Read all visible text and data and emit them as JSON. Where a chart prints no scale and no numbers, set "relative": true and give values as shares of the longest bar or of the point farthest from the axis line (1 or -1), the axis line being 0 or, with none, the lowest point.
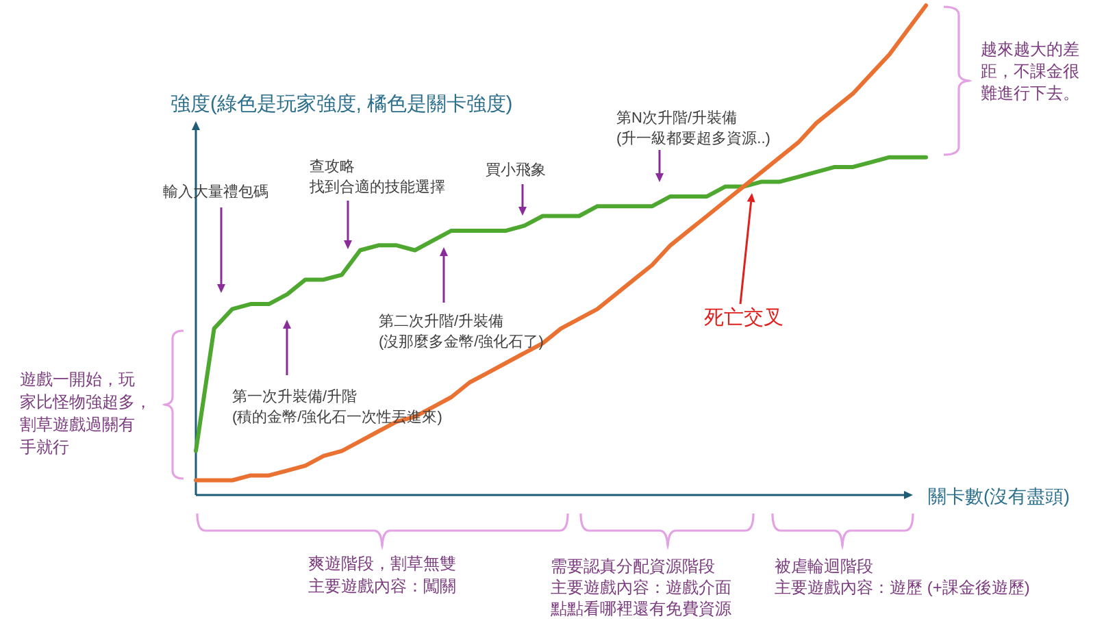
{
  "chart_data": {
    "type": "line",
    "relative": true,
    "ylabel": "強度(綠色是玩家強度, 橘色是關卡強度)",
    "xlabel": "關卡數(沒有盡頭)",
    "categories": [
      null,
      null,
      null,
      null,
      null,
      null,
      null,
      null,
      null,
      null,
      null,
      null,
      null,
      null,
      null,
      null,
      null,
      null,
      null,
      null,
      null,
      null,
      null,
      null,
      null,
      null,
      null,
      null,
      null,
      null,
      null,
      null,
      null,
      null,
      null,
      null,
      null,
      null,
      null,
      null,
      null
    ],
    "series": [
      {
        "color": "#4ea72e",
        "values": [
          0.09,
          0.34,
          0.38,
          0.39,
          0.39,
          0.41,
          0.44,
          0.44,
          0.45,
          0.5,
          0.51,
          0.51,
          0.5,
          0.52,
          0.54,
          0.54,
          0.54,
          0.54,
          0.55,
          0.57,
          0.57,
          0.57,
          0.59,
          0.59,
          0.59,
          0.59,
          0.61,
          0.61,
          0.61,
          0.63,
          0.63,
          0.64,
          0.64,
          0.65,
          0.66,
          0.67,
          0.67,
          0.68,
          0.69,
          0.69,
          0.69
        ]
      },
      {
        "color": "#e97132",
        "values": [
          0.03,
          0.03,
          0.03,
          0.04,
          0.04,
          0.05,
          0.06,
          0.08,
          0.09,
          0.11,
          0.13,
          0.15,
          0.16,
          0.18,
          0.2,
          0.23,
          0.25,
          0.27,
          0.29,
          0.31,
          0.34,
          0.36,
          0.38,
          0.41,
          0.44,
          0.47,
          0.51,
          0.54,
          0.57,
          0.6,
          0.63,
          0.66,
          0.69,
          0.72,
          0.76,
          0.79,
          0.82,
          0.86,
          0.9,
          0.95,
          1
        ]
      }
    ],
    "annotations": [
      "輸入大量禮包碼",
      "查攻略找到合適的技能選擇",
      "買小飛象",
      "第N次升階/升裝備\n(升一級都要超多資源..)",
      "第一次升裝備/升階\n(積的金幣/強化石一次性丟進來)",
      "第二次升階/升裝備\n(沒那麼多金幣/強化石了)",
      "死亡交叉",
      "遊戲一開始，玩家比怪物強超多，割草遊戲過關有手就行",
      "越來越大的差距，不課金很難進行下去。",
      "爽遊階段，割草無雙主要遊戲內容：闖關",
      "需要認真分配資源階段主要遊戲內容：遊戲介面點點看哪裡還有免費資源",
      "被虐輪迴階段主要遊戲內容：遊歷 (+課金後遊歷)"
    ]
  }
}
